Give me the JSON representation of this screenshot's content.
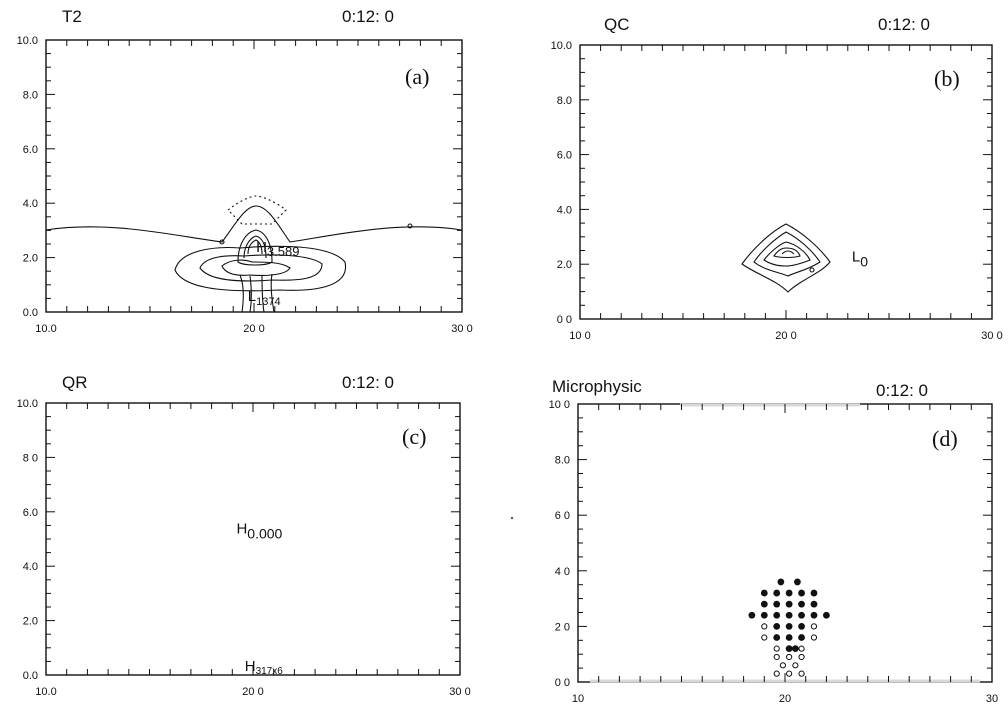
{
  "chart_data": [
    {
      "type": "contour",
      "title": "T2",
      "time": "0:12: 0",
      "panel_tag": "(a)",
      "xlim": [
        10,
        30
      ],
      "ylim": [
        0,
        10
      ],
      "x_tick_labels": [
        "10.0",
        "20 0",
        "30 0"
      ],
      "y_tick_labels": [
        "0.0",
        "2.0",
        "4.0",
        "6.0",
        "8.0",
        "10.0"
      ],
      "annotations": [
        {
          "text": "H",
          "sub": "3.589",
          "x": 20.1,
          "y": 2.2
        },
        {
          "text": "L",
          "sub": "1374",
          "x": 19.7,
          "y": 0.4
        }
      ]
    },
    {
      "type": "contour",
      "title": "QC",
      "time": "0:12: 0",
      "panel_tag": "(b)",
      "xlim": [
        10,
        30
      ],
      "ylim": [
        0,
        10
      ],
      "x_tick_labels": [
        "10 0",
        "20 0",
        "30 0"
      ],
      "y_tick_labels": [
        "0 0",
        "2.0",
        "4.0",
        "6.0",
        "8.0",
        "10.0"
      ],
      "annotations": [
        {
          "text": "L",
          "sub": "0",
          "x": 23.2,
          "y": 2.1
        }
      ]
    },
    {
      "type": "contour",
      "title": "QR",
      "time": "0:12: 0",
      "panel_tag": "(c)",
      "xlim": [
        10,
        30
      ],
      "ylim": [
        0,
        10
      ],
      "x_tick_labels": [
        "10.0",
        "20 0",
        "30 0"
      ],
      "y_tick_labels": [
        "0.0",
        "2.0",
        "4.0",
        "6.0",
        "8 0",
        "10.0"
      ],
      "annotations": [
        {
          "text": "H",
          "sub": "0.000",
          "x": 19.2,
          "y": 5.2
        },
        {
          "text": "H",
          "sub": "317x6",
          "x": 19.6,
          "y": 0.15
        }
      ]
    },
    {
      "type": "scatter",
      "title": "Microphysic",
      "time": "0:12: 0",
      "panel_tag": "(d)",
      "xlim": [
        10,
        30
      ],
      "ylim": [
        0,
        10
      ],
      "x_tick_labels": [
        "10",
        "20",
        "30"
      ],
      "y_tick_labels": [
        "0 0",
        "2 0",
        "4 0",
        "6 0",
        "8.0",
        "10 0"
      ],
      "series": [
        {
          "marker": "filled",
          "points": [
            [
              19.8,
              3.6
            ],
            [
              20.6,
              3.6
            ],
            [
              19.0,
              3.2
            ],
            [
              19.6,
              3.2
            ],
            [
              20.2,
              3.2
            ],
            [
              20.8,
              3.2
            ],
            [
              21.4,
              3.2
            ],
            [
              19.0,
              2.8
            ],
            [
              19.6,
              2.8
            ],
            [
              20.2,
              2.8
            ],
            [
              20.8,
              2.8
            ],
            [
              21.4,
              2.8
            ],
            [
              18.4,
              2.4
            ],
            [
              19.0,
              2.4
            ],
            [
              19.6,
              2.4
            ],
            [
              20.2,
              2.4
            ],
            [
              20.8,
              2.4
            ],
            [
              21.4,
              2.4
            ],
            [
              22.0,
              2.4
            ],
            [
              19.6,
              2.0
            ],
            [
              20.2,
              2.0
            ],
            [
              20.8,
              2.0
            ],
            [
              19.6,
              1.6
            ],
            [
              20.2,
              1.6
            ],
            [
              20.8,
              1.6
            ],
            [
              20.2,
              1.2
            ],
            [
              20.5,
              1.2
            ]
          ]
        },
        {
          "marker": "open",
          "points": [
            [
              19.0,
              2.0
            ],
            [
              21.4,
              2.0
            ],
            [
              19.0,
              1.6
            ],
            [
              21.4,
              1.6
            ],
            [
              19.6,
              1.2
            ],
            [
              20.8,
              1.2
            ],
            [
              19.6,
              0.9
            ],
            [
              20.2,
              0.9
            ],
            [
              20.8,
              0.9
            ],
            [
              19.9,
              0.6
            ],
            [
              20.5,
              0.6
            ],
            [
              19.6,
              0.3
            ],
            [
              20.2,
              0.3
            ],
            [
              20.8,
              0.3
            ]
          ]
        }
      ]
    }
  ],
  "colors": {
    "ink": "#111111",
    "paper": "#ffffff",
    "fade": "#d8d8d8"
  }
}
